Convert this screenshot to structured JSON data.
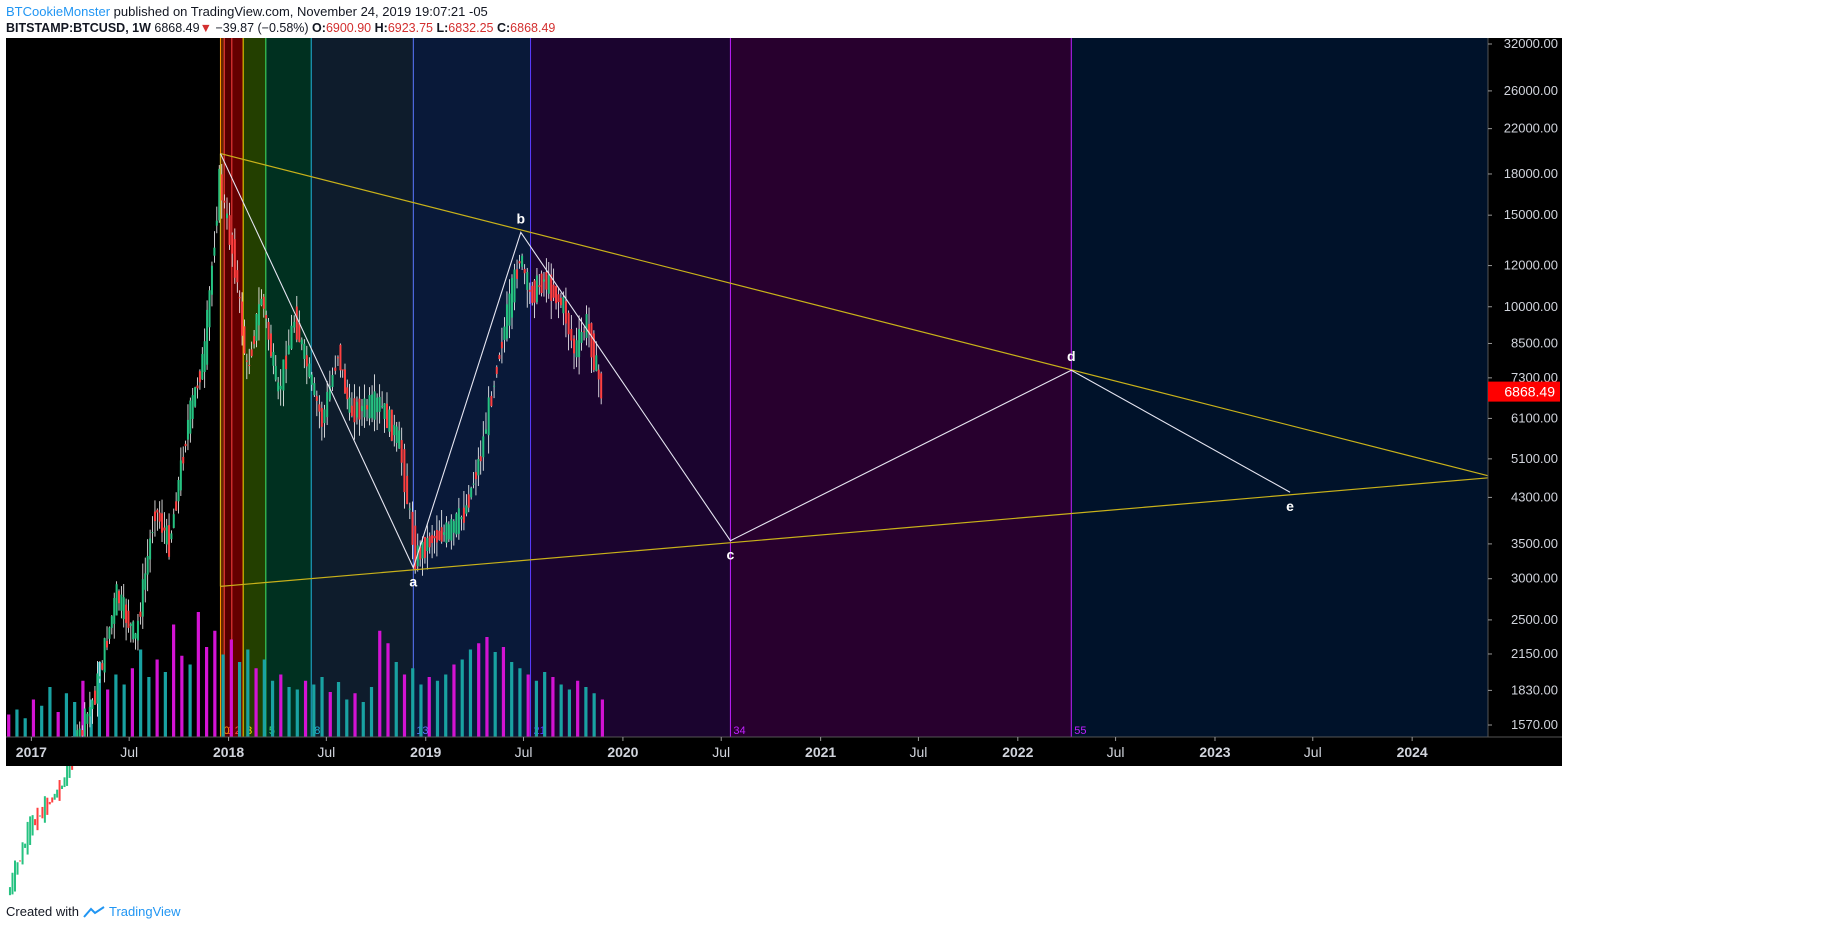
{
  "header": {
    "author": "BTCookieMonster",
    "published_text": "published on TradingView.com, November 24, 2019 19:07:21 -05",
    "symbol": "BITSTAMP:BTCUSD, 1W",
    "price": "6868.49",
    "change": "−39.87 (−0.58%)",
    "o_label": "O:",
    "o": "6900.90",
    "h_label": "H:",
    "h": "6923.75",
    "l_label": "L:",
    "l": "6832.25",
    "c_label": "C:",
    "c": "6868.49"
  },
  "footer": {
    "created_with": "Created with",
    "brand": "TradingView"
  },
  "colors": {
    "chart_bg": "#000000",
    "future_bg": "#00122a",
    "triangle": "#c9b21a",
    "wave_line": "#e6e6f2",
    "up_candle": "#26c281",
    "down_candle": "#ff4040",
    "price_label_bg": "#ff0000",
    "vol_teal": "#19a2a2",
    "vol_magenta": "#d313d3"
  },
  "chart_data": {
    "type": "candlestick",
    "symbol": "BITSTAMP:BTCUSD",
    "interval": "1W",
    "y_scale": "log",
    "ylim": [
      1570,
      32000
    ],
    "y_ticks": [
      1570,
      1830,
      2150,
      2500,
      3000,
      3500,
      4300,
      5100,
      6100,
      7300,
      8500,
      10000,
      12000,
      15000,
      18000,
      22000,
      26000,
      32000
    ],
    "y_tick_labels": [
      "1570.00",
      "1830.00",
      "2150.00",
      "2500.00",
      "3000.00",
      "3500.00",
      "4300.00",
      "5100.00",
      "6100.00",
      "7300.00",
      "8500.00",
      "10000.00",
      "12000.00",
      "15000.00",
      "18000.00",
      "22000.00",
      "26000.00",
      "32000.00"
    ],
    "x_range": [
      "2016-11-15",
      "2024-11-01"
    ],
    "x_ticks": [
      {
        "date": "2017-01-01",
        "label": "2017",
        "major": true
      },
      {
        "date": "2017-07-01",
        "label": "Jul",
        "major": false
      },
      {
        "date": "2018-01-01",
        "label": "2018",
        "major": true
      },
      {
        "date": "2018-07-01",
        "label": "Jul",
        "major": false
      },
      {
        "date": "2019-01-01",
        "label": "2019",
        "major": true
      },
      {
        "date": "2019-07-01",
        "label": "Jul",
        "major": false
      },
      {
        "date": "2020-01-01",
        "label": "2020",
        "major": true
      },
      {
        "date": "2020-07-01",
        "label": "Jul",
        "major": false
      },
      {
        "date": "2021-01-01",
        "label": "2021",
        "major": true
      },
      {
        "date": "2021-07-01",
        "label": "Jul",
        "major": false
      },
      {
        "date": "2022-01-01",
        "label": "2022",
        "major": true
      },
      {
        "date": "2022-07-01",
        "label": "Jul",
        "major": false
      },
      {
        "date": "2023-01-01",
        "label": "2023",
        "major": true
      },
      {
        "date": "2023-07-01",
        "label": "Jul",
        "major": false
      },
      {
        "date": "2024-01-01",
        "label": "2024",
        "major": true
      }
    ],
    "last_price": 6868.49,
    "last_price_label": "6868.49",
    "price_path": [
      {
        "date": "2016-11-20",
        "price": 740
      },
      {
        "date": "2017-01-01",
        "price": 1000
      },
      {
        "date": "2017-03-01",
        "price": 1200
      },
      {
        "date": "2017-05-01",
        "price": 1800
      },
      {
        "date": "2017-06-10",
        "price": 2800
      },
      {
        "date": "2017-07-15",
        "price": 2300
      },
      {
        "date": "2017-08-20",
        "price": 4100
      },
      {
        "date": "2017-09-15",
        "price": 3500
      },
      {
        "date": "2017-10-20",
        "price": 6000
      },
      {
        "date": "2017-11-20",
        "price": 8200
      },
      {
        "date": "2017-12-17",
        "price": 17500
      },
      {
        "date": "2018-01-15",
        "price": 12000
      },
      {
        "date": "2018-02-06",
        "price": 7500
      },
      {
        "date": "2018-03-05",
        "price": 10500
      },
      {
        "date": "2018-04-05",
        "price": 6800
      },
      {
        "date": "2018-05-05",
        "price": 9500
      },
      {
        "date": "2018-06-25",
        "price": 6000
      },
      {
        "date": "2018-07-25",
        "price": 8200
      },
      {
        "date": "2018-08-15",
        "price": 6300
      },
      {
        "date": "2018-10-10",
        "price": 6500
      },
      {
        "date": "2018-11-15",
        "price": 5500
      },
      {
        "date": "2018-12-15",
        "price": 3300
      },
      {
        "date": "2019-01-15",
        "price": 3600
      },
      {
        "date": "2019-02-15",
        "price": 3700
      },
      {
        "date": "2019-03-15",
        "price": 4000
      },
      {
        "date": "2019-04-15",
        "price": 5200
      },
      {
        "date": "2019-05-15",
        "price": 7800
      },
      {
        "date": "2019-06-26",
        "price": 12500
      },
      {
        "date": "2019-07-15",
        "price": 10500
      },
      {
        "date": "2019-08-10",
        "price": 11300
      },
      {
        "date": "2019-09-15",
        "price": 10000
      },
      {
        "date": "2019-10-05",
        "price": 8200
      },
      {
        "date": "2019-10-28",
        "price": 9300
      },
      {
        "date": "2019-11-24",
        "price": 6868
      }
    ],
    "volume_relative": [
      0.18,
      0.22,
      0.15,
      0.3,
      0.25,
      0.4,
      0.2,
      0.35,
      0.28,
      0.45,
      0.3,
      0.6,
      0.38,
      0.5,
      0.42,
      0.55,
      0.7,
      0.48,
      0.62,
      0.52,
      0.9,
      0.65,
      0.58,
      1.0,
      0.72,
      0.85,
      0.66,
      0.78,
      0.6,
      0.7,
      0.55,
      0.62,
      0.45,
      0.5,
      0.4,
      0.38,
      0.45,
      0.42,
      0.48,
      0.36,
      0.44,
      0.3,
      0.35,
      0.28,
      0.4,
      0.85,
      0.75,
      0.6,
      0.5,
      0.55,
      0.42,
      0.48,
      0.45,
      0.5,
      0.58,
      0.62,
      0.7,
      0.75,
      0.8,
      0.68,
      0.72,
      0.6,
      0.55,
      0.5,
      0.45,
      0.52,
      0.48,
      0.42,
      0.38,
      0.45,
      0.4,
      0.35,
      0.3
    ],
    "time_zones": [
      {
        "label": "0",
        "date": "2017-12-17",
        "color": "#ff9800",
        "fill": "#6b2a00"
      },
      {
        "label": "1",
        "date": "2017-12-24",
        "color": "#ff4040",
        "fill": "#5a0000"
      },
      {
        "label": "2",
        "date": "2018-01-07",
        "color": "#ff4040",
        "fill": "#6a0000"
      },
      {
        "label": "3",
        "date": "2018-01-28",
        "color": "#ffd700",
        "fill": "#254200"
      },
      {
        "label": "5",
        "date": "2018-03-11",
        "color": "#3ce66c",
        "fill": "#003322"
      },
      {
        "label": "8",
        "date": "2018-06-03",
        "color": "#1eb6d8",
        "fill": "#0f1e2e"
      },
      {
        "label": "13",
        "date": "2018-12-09",
        "color": "#5b78ff",
        "fill": "#0a1a3c"
      },
      {
        "label": "21",
        "date": "2019-07-14",
        "color": "#5b3cff",
        "fill": "#1c0432"
      },
      {
        "label": "34",
        "date": "2020-07-18",
        "color": "#c020ff",
        "fill": "#2a0030"
      },
      {
        "label": "55",
        "date": "2022-04-10",
        "color": "#c020ff",
        "fill": "#3a0038"
      }
    ],
    "triangle_lines": [
      {
        "from": {
          "date": "2017-12-17",
          "price": 19700
        },
        "to": {
          "date": "2024-06-01",
          "price": 4700
        }
      },
      {
        "from": {
          "date": "2017-12-17",
          "price": 2900
        },
        "to": {
          "date": "2024-06-01",
          "price": 4700
        }
      },
      {
        "from": {
          "date": "2017-12-17",
          "price": 2900
        },
        "to": {
          "date": "2017-12-17",
          "price": 19700
        }
      }
    ],
    "wave_points": [
      {
        "label": "",
        "date": "2017-12-17",
        "price": 19700
      },
      {
        "label": "a",
        "date": "2018-12-09",
        "price": 3150
      },
      {
        "label": "b",
        "date": "2019-06-26",
        "price": 13900
      },
      {
        "label": "c",
        "date": "2020-07-18",
        "price": 3550
      },
      {
        "label": "d",
        "date": "2022-04-10",
        "price": 7550
      },
      {
        "label": "e",
        "date": "2023-05-20",
        "price": 4400
      }
    ]
  }
}
